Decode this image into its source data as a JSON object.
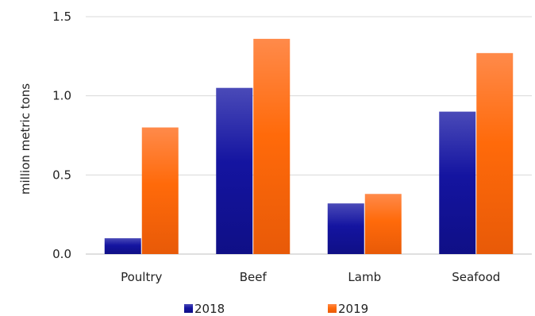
{
  "chart_data": {
    "type": "bar",
    "title": "",
    "xlabel": "",
    "ylabel": "million metric tons",
    "categories": [
      "Poultry",
      "Beef",
      "Lamb",
      "Seafood"
    ],
    "series": [
      {
        "name": "2018",
        "values": [
          0.1,
          1.05,
          0.32,
          0.9
        ],
        "color": "#1a1a9e"
      },
      {
        "name": "2019",
        "values": [
          0.8,
          1.36,
          0.38,
          1.27
        ],
        "color": "#ff7a1f"
      }
    ],
    "ylim": [
      0,
      1.5
    ],
    "yticks": [
      "0.0",
      "0.5",
      "1.0",
      "1.5"
    ],
    "ytick_values": [
      0,
      0.5,
      1.0,
      1.5
    ],
    "grid": true,
    "legend_position": "bottom"
  }
}
